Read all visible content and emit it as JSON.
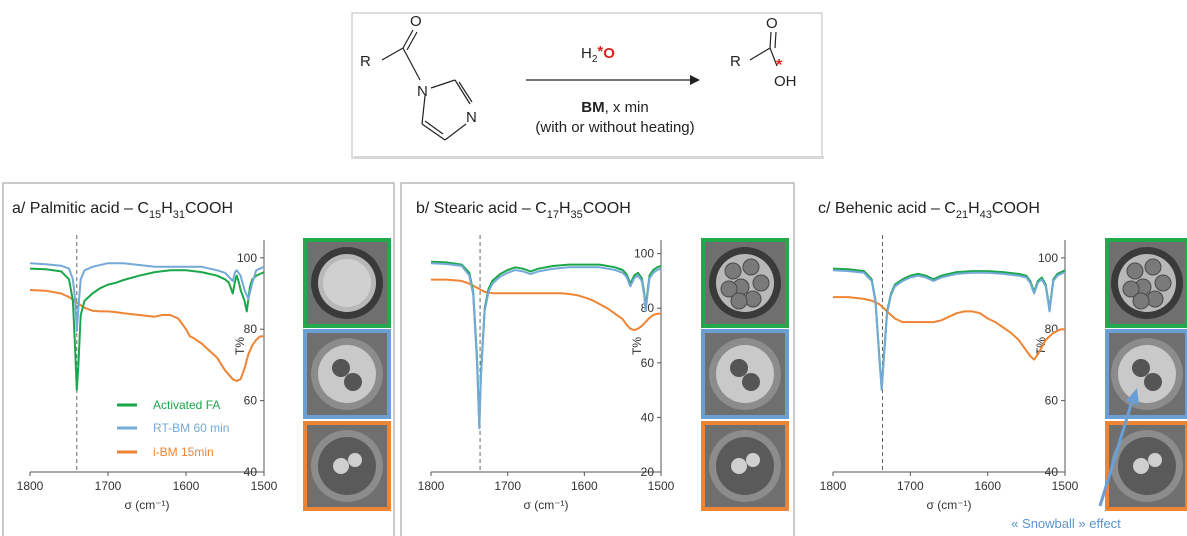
{
  "scheme": {
    "reagent_prefix": "H",
    "reagent_sub": "2",
    "reagent_star": "*",
    "reagent_o": "O",
    "condition_bold": "BM",
    "condition_rest": ", x min",
    "condition_note": "(with or without heating)",
    "left_labels": {
      "r": "R",
      "o": "O",
      "n1": "N",
      "n2": "N"
    },
    "right_labels": {
      "r": "R",
      "o": "O",
      "oh": "OH",
      "star": "*"
    }
  },
  "colors": {
    "activated": "#1aa64a",
    "rt": "#74a9d8",
    "ibm": "#ef8434",
    "highlight_red": "#e0211d",
    "frame_green": "#22a84d",
    "frame_blue": "#6b9fd4",
    "frame_orange": "#ee8535"
  },
  "legend": [
    "Activated FA",
    "RT-BM 60 min",
    "i-BM 15min"
  ],
  "annotation": "« Snowball » effect",
  "chart_data": [
    {
      "type": "line",
      "title_pre": "a/ Palmitic acid – C",
      "title_s1": "15",
      "title_mid": "H",
      "title_s2": "31",
      "title_post": "COOH",
      "xlabel": "σ (cm⁻¹)",
      "ylabel": "T%",
      "xlim": [
        1800,
        1500
      ],
      "ylim": [
        40,
        105
      ],
      "xticks": [
        1800,
        1700,
        1600,
        1500
      ],
      "yticks": [
        40,
        60,
        80,
        100
      ],
      "marker_x": 1740,
      "series": [
        {
          "name": "Activated FA",
          "color": "#1aa64a",
          "x": [
            1800,
            1780,
            1760,
            1750,
            1745,
            1742,
            1740,
            1738,
            1735,
            1730,
            1725,
            1720,
            1710,
            1700,
            1690,
            1680,
            1660,
            1640,
            1620,
            1600,
            1580,
            1560,
            1550,
            1545,
            1540,
            1537,
            1535,
            1532,
            1530,
            1525,
            1522,
            1520,
            1518,
            1515,
            1510,
            1505,
            1500
          ],
          "y": [
            97,
            96.8,
            96.2,
            94,
            88,
            74,
            63,
            70,
            84,
            88,
            89,
            90,
            91.5,
            92.5,
            93,
            93.8,
            95,
            96,
            96.5,
            96.5,
            96,
            95,
            94,
            93,
            90,
            93.5,
            95,
            93,
            91,
            88,
            85,
            88.5,
            92,
            94,
            95,
            95.5,
            96
          ]
        },
        {
          "name": "RT-BM 60 min",
          "color": "#74a9d8",
          "x": [
            1800,
            1780,
            1760,
            1750,
            1745,
            1742,
            1740,
            1738,
            1735,
            1730,
            1720,
            1700,
            1680,
            1660,
            1640,
            1620,
            1600,
            1580,
            1560,
            1550,
            1540,
            1537,
            1535,
            1530,
            1525,
            1520,
            1515,
            1510,
            1505,
            1500
          ],
          "y": [
            98.5,
            98.2,
            97.8,
            97,
            94,
            88,
            79.5,
            86,
            94,
            96.5,
            97.5,
            98.5,
            98.5,
            98,
            97.5,
            97.5,
            97.5,
            97.5,
            96.5,
            95.8,
            93.5,
            96,
            96.5,
            95,
            91,
            88.5,
            93,
            96.5,
            97,
            97.5
          ]
        },
        {
          "name": "i-BM 15min",
          "color": "#ef8434",
          "x": [
            1800,
            1780,
            1760,
            1750,
            1740,
            1730,
            1720,
            1710,
            1700,
            1690,
            1680,
            1660,
            1640,
            1630,
            1620,
            1610,
            1600,
            1595,
            1590,
            1580,
            1570,
            1560,
            1550,
            1540,
            1535,
            1530,
            1525,
            1520,
            1515,
            1510,
            1505,
            1500
          ],
          "y": [
            91,
            90.8,
            90,
            89,
            87.5,
            86,
            85.2,
            85,
            85,
            84.8,
            84.5,
            84,
            83.5,
            84,
            84,
            83,
            80,
            78,
            77.5,
            76,
            74,
            72,
            68.5,
            66,
            65.5,
            66,
            69,
            73,
            75.5,
            77,
            78,
            78
          ]
        }
      ]
    },
    {
      "type": "line",
      "title_pre": "b/ Stearic acid – C",
      "title_s1": "17",
      "title_mid": "H",
      "title_s2": "35",
      "title_post": "COOH",
      "xlabel": "σ (cm⁻¹)",
      "ylabel": "T%",
      "xlim": [
        1800,
        1500
      ],
      "ylim": [
        20,
        105
      ],
      "xticks": [
        1800,
        1700,
        1600,
        1500
      ],
      "yticks": [
        20,
        40,
        60,
        80,
        100
      ],
      "marker_x": 1736,
      "series": [
        {
          "name": "Activated FA",
          "color": "#1aa64a",
          "x": [
            1800,
            1780,
            1760,
            1750,
            1745,
            1740,
            1737,
            1735,
            1730,
            1725,
            1720,
            1710,
            1700,
            1690,
            1680,
            1670,
            1660,
            1650,
            1640,
            1620,
            1600,
            1580,
            1560,
            1550,
            1545,
            1540,
            1535,
            1530,
            1525,
            1522,
            1520,
            1518,
            1515,
            1510,
            1505,
            1500
          ],
          "y": [
            97,
            96.8,
            96,
            93,
            86,
            62,
            37,
            55,
            80,
            87,
            90,
            92.5,
            94,
            95,
            94.5,
            93.5,
            94.5,
            95,
            95.5,
            96,
            96,
            96,
            95,
            94,
            92.5,
            89,
            92,
            93,
            91,
            86,
            80,
            85,
            92,
            94,
            95,
            95.5
          ]
        },
        {
          "name": "RT-BM 60 min",
          "color": "#74a9d8",
          "x": [
            1800,
            1780,
            1760,
            1750,
            1745,
            1740,
            1737,
            1735,
            1730,
            1725,
            1720,
            1710,
            1700,
            1690,
            1680,
            1670,
            1660,
            1650,
            1640,
            1620,
            1600,
            1580,
            1560,
            1550,
            1545,
            1540,
            1535,
            1530,
            1525,
            1522,
            1520,
            1518,
            1515,
            1510,
            1505,
            1500
          ],
          "y": [
            96.5,
            96.2,
            95.5,
            92,
            85,
            60,
            36,
            54,
            79,
            86,
            89,
            91.5,
            93,
            94,
            93.5,
            92.5,
            93.5,
            94,
            94.5,
            95,
            95,
            95,
            94,
            93,
            91.5,
            88,
            91,
            92,
            90,
            85,
            79,
            84,
            91,
            93,
            94,
            94.5
          ]
        },
        {
          "name": "i-BM 15min",
          "color": "#ef8434",
          "x": [
            1800,
            1780,
            1760,
            1750,
            1740,
            1730,
            1720,
            1710,
            1700,
            1690,
            1680,
            1670,
            1660,
            1650,
            1640,
            1630,
            1620,
            1610,
            1600,
            1590,
            1580,
            1570,
            1560,
            1550,
            1545,
            1540,
            1535,
            1530,
            1525,
            1520,
            1515,
            1510,
            1505,
            1500
          ],
          "y": [
            90.5,
            90.5,
            90,
            89,
            87.5,
            86,
            85.5,
            85.5,
            85.5,
            85.5,
            85.5,
            85.5,
            85.5,
            85.5,
            85.5,
            85.5,
            85.2,
            84.8,
            84,
            83,
            81.5,
            80,
            78,
            76,
            74,
            72.5,
            72,
            72.5,
            73.5,
            75,
            76.5,
            77.5,
            78,
            78
          ]
        }
      ]
    },
    {
      "type": "line",
      "title_pre": "c/ Behenic acid – C",
      "title_s1": "21",
      "title_mid": "H",
      "title_s2": "43",
      "title_post": "COOH",
      "xlabel": "σ (cm⁻¹)",
      "ylabel": "T%",
      "xlim": [
        1800,
        1500
      ],
      "ylim": [
        40,
        105
      ],
      "xticks": [
        1800,
        1700,
        1600,
        1500
      ],
      "yticks": [
        40,
        60,
        80,
        100
      ],
      "marker_x": 1736,
      "series": [
        {
          "name": "Activated FA",
          "color": "#1aa64a",
          "x": [
            1800,
            1780,
            1760,
            1750,
            1745,
            1740,
            1737,
            1735,
            1730,
            1725,
            1720,
            1710,
            1700,
            1690,
            1680,
            1670,
            1660,
            1650,
            1640,
            1620,
            1600,
            1580,
            1560,
            1550,
            1545,
            1540,
            1535,
            1530,
            1525,
            1522,
            1520,
            1518,
            1515,
            1510,
            1505,
            1500
          ],
          "y": [
            97,
            96.8,
            96.3,
            94,
            88,
            72,
            63.5,
            70,
            85,
            90,
            92.5,
            94,
            95,
            95.5,
            95,
            94,
            95,
            95.5,
            96,
            96.3,
            96.3,
            96,
            95.5,
            95,
            93.5,
            90.5,
            93.5,
            94.5,
            92.5,
            88.5,
            85.5,
            89,
            94,
            95.5,
            96,
            96.5
          ]
        },
        {
          "name": "RT-BM 60 min",
          "color": "#74a9d8",
          "x": [
            1800,
            1780,
            1760,
            1750,
            1745,
            1740,
            1737,
            1735,
            1730,
            1725,
            1720,
            1710,
            1700,
            1690,
            1680,
            1670,
            1660,
            1650,
            1640,
            1620,
            1600,
            1580,
            1560,
            1550,
            1545,
            1540,
            1535,
            1530,
            1525,
            1522,
            1520,
            1518,
            1515,
            1510,
            1505,
            1500
          ],
          "y": [
            96.5,
            96.3,
            95.8,
            93.5,
            87.5,
            71.5,
            63,
            69.5,
            84.5,
            89.5,
            92,
            93.5,
            94.5,
            95,
            94.5,
            93.5,
            94.5,
            95,
            95.5,
            95.8,
            95.8,
            95.5,
            95,
            94.5,
            93,
            90,
            93,
            94,
            92,
            88,
            85,
            88.5,
            93.5,
            95,
            95.5,
            96
          ]
        },
        {
          "name": "i-BM 15min",
          "color": "#ef8434",
          "x": [
            1800,
            1780,
            1760,
            1750,
            1740,
            1730,
            1720,
            1710,
            1700,
            1690,
            1680,
            1670,
            1660,
            1650,
            1640,
            1630,
            1620,
            1610,
            1600,
            1590,
            1580,
            1570,
            1560,
            1550,
            1545,
            1540,
            1535,
            1530,
            1525,
            1520,
            1515,
            1510,
            1505,
            1500
          ],
          "y": [
            89,
            89,
            88.5,
            88,
            87,
            85,
            83,
            82,
            82,
            82,
            82,
            82,
            82.5,
            83.5,
            84.5,
            85,
            85,
            84.5,
            83,
            82,
            80.5,
            79,
            77,
            74,
            72.5,
            71.5,
            73,
            75,
            77,
            78,
            79,
            79.5,
            80,
            80
          ]
        }
      ]
    }
  ]
}
